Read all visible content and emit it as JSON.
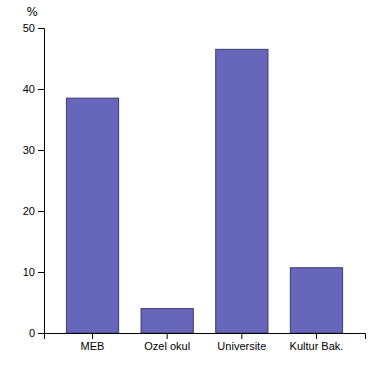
{
  "chart_data": {
    "type": "bar",
    "categories": [
      "MEB",
      "Ozel okul",
      "Universite",
      "Kultur Bak."
    ],
    "values": [
      38.5,
      4.0,
      46.5,
      10.7
    ],
    "color": "#6666bb",
    "ylabel": "%",
    "ylim": [
      0,
      50
    ],
    "yticks": [
      0,
      10,
      20,
      30,
      40,
      50
    ],
    "grid": false
  }
}
